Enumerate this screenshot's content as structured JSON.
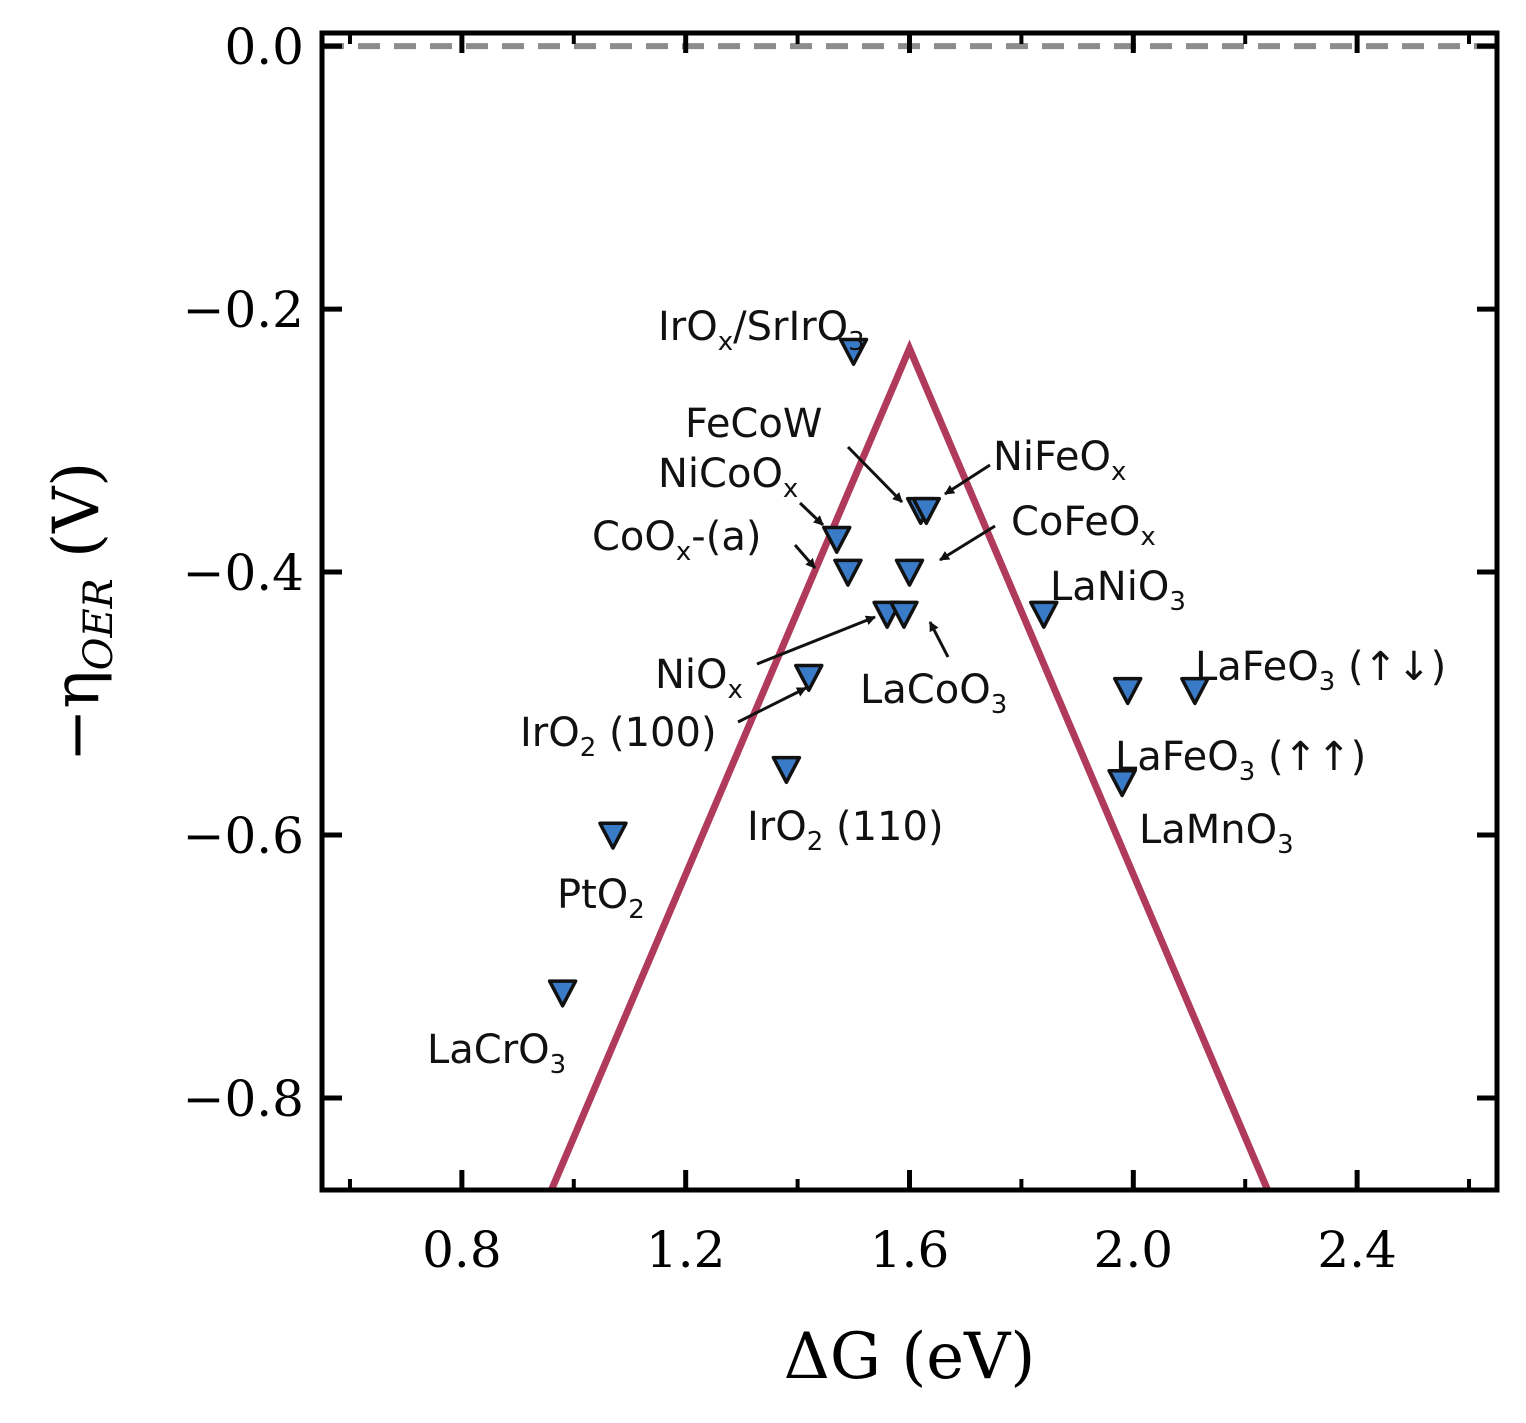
{
  "chart_data": {
    "type": "scatter",
    "xlabel": "ΔG (eV)",
    "ylabel": "−η_OER (V)",
    "xlim": [
      0.55,
      2.65
    ],
    "ylim": [
      -0.87,
      0.01
    ],
    "xticks": [
      0.8,
      1.2,
      1.6,
      2.0,
      2.4
    ],
    "xtick_labels": [
      "0.8",
      "1.2",
      "1.6",
      "2.0",
      "2.4"
    ],
    "yticks": [
      0.0,
      -0.2,
      -0.4,
      -0.6,
      -0.8
    ],
    "ytick_labels": [
      "0.0",
      "−0.2",
      "−0.4",
      "−0.6",
      "−0.8"
    ],
    "grid": false,
    "reference_line": {
      "y": 0.0,
      "style": "dashed",
      "color": "#8c8c8c"
    },
    "volcano": {
      "points": [
        [
          0.96,
          -0.87
        ],
        [
          1.6,
          -0.23
        ],
        [
          2.24,
          -0.87
        ]
      ],
      "color": "#b03a5b"
    },
    "marker_color": "#3a7bc8",
    "points": [
      {
        "x": 1.5,
        "y": -0.232
      },
      {
        "x": 1.62,
        "y": -0.353
      },
      {
        "x": 1.63,
        "y": -0.353
      },
      {
        "x": 1.47,
        "y": -0.375
      },
      {
        "x": 1.49,
        "y": -0.4
      },
      {
        "x": 1.6,
        "y": -0.4
      },
      {
        "x": 1.56,
        "y": -0.432
      },
      {
        "x": 1.59,
        "y": -0.432
      },
      {
        "x": 1.84,
        "y": -0.432
      },
      {
        "x": 1.42,
        "y": -0.48
      },
      {
        "x": 1.99,
        "y": -0.49
      },
      {
        "x": 2.11,
        "y": -0.49
      },
      {
        "x": 1.38,
        "y": -0.55
      },
      {
        "x": 1.98,
        "y": -0.56
      },
      {
        "x": 1.07,
        "y": -0.6
      },
      {
        "x": 0.98,
        "y": -0.72
      }
    ],
    "annotations": [
      {
        "main": "IrO",
        "sub1": "x",
        "mid": "/SrIrO",
        "sub2": "3",
        "tail": ""
      },
      {
        "main": "FeCoW",
        "sub1": "",
        "mid": "",
        "sub2": "",
        "tail": ""
      },
      {
        "main": "NiFeO",
        "sub1": "x",
        "mid": "",
        "sub2": "",
        "tail": ""
      },
      {
        "main": "NiCoO",
        "sub1": "x",
        "mid": "",
        "sub2": "",
        "tail": ""
      },
      {
        "main": "CoO",
        "sub1": "x",
        "mid": "-(a)",
        "sub2": "",
        "tail": ""
      },
      {
        "main": "CoFeO",
        "sub1": "x",
        "mid": "",
        "sub2": "",
        "tail": ""
      },
      {
        "main": "LaNiO",
        "sub1": "3",
        "mid": "",
        "sub2": "",
        "tail": ""
      },
      {
        "main": "NiO",
        "sub1": "x",
        "mid": "",
        "sub2": "",
        "tail": ""
      },
      {
        "main": "LaCoO",
        "sub1": "3",
        "mid": "",
        "sub2": "",
        "tail": ""
      },
      {
        "main": "LaFeO",
        "sub1": "3",
        "mid": "",
        "sub2": "",
        "tail": " (↑↓)"
      },
      {
        "main": "IrO",
        "sub1": "2",
        "mid": " (100)",
        "sub2": "",
        "tail": ""
      },
      {
        "main": "LaFeO",
        "sub1": "3",
        "mid": "",
        "sub2": "",
        "tail": " (↑↑)"
      },
      {
        "main": "IrO",
        "sub1": "2",
        "mid": " (110)",
        "sub2": "",
        "tail": ""
      },
      {
        "main": "LaMnO",
        "sub1": "3",
        "mid": "",
        "sub2": "",
        "tail": ""
      },
      {
        "main": "PtO",
        "sub1": "2",
        "mid": "",
        "sub2": "",
        "tail": ""
      },
      {
        "main": "LaCrO",
        "sub1": "3",
        "mid": "",
        "sub2": "",
        "tail": ""
      }
    ]
  }
}
